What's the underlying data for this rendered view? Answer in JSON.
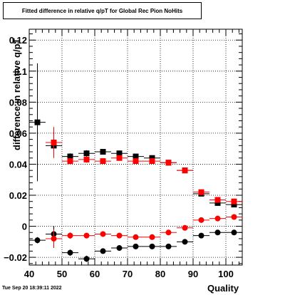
{
  "chart_data": {
    "type": "scatter",
    "title": "Fitted difference in relative q/pT for Global Rec Pion NoHits",
    "xlabel": "Quality",
    "ylabel": "difference in relative q/pT",
    "xlim": [
      40,
      105
    ],
    "ylim": [
      -0.025,
      0.127
    ],
    "grid": true,
    "x_ticks": [
      40,
      50,
      60,
      70,
      80,
      90,
      100
    ],
    "y_ticks": [
      -0.02,
      0,
      0.02,
      0.04,
      0.06,
      0.08,
      0.1,
      0.12
    ],
    "y_tick_labels": [
      "−0.02",
      "0",
      "0.02",
      "0.04",
      "0.06",
      "0.08",
      "0.1",
      "0.12"
    ],
    "x": [
      42.5,
      47.5,
      52.5,
      57.5,
      62.5,
      67.5,
      72.5,
      77.5,
      82.5,
      87.5,
      92.5,
      97.5,
      102.5
    ],
    "series": [
      {
        "color": "#000000",
        "marker": "square",
        "values": [
          0.067,
          0.052,
          0.045,
          0.047,
          0.048,
          0.047,
          0.045,
          0.044,
          0.041,
          0.036,
          0.021,
          0.015,
          0.014
        ],
        "yerr": [
          0.038,
          0.003,
          0.002,
          0.002,
          0.001,
          0.001,
          0.001,
          0.001,
          0.001,
          0.001,
          0.001,
          0.001,
          0.001
        ]
      },
      {
        "color": "#ff0000",
        "marker": "square",
        "values": [
          null,
          0.054,
          0.042,
          0.043,
          0.042,
          0.044,
          0.042,
          0.042,
          0.041,
          0.036,
          0.022,
          0.017,
          0.016
        ],
        "yerr": [
          null,
          0.01,
          0.002,
          0.002,
          0.001,
          0.001,
          0.001,
          0.001,
          0.001,
          0.001,
          0.001,
          0.001,
          0.001
        ]
      },
      {
        "color": "#000000",
        "marker": "circle",
        "values": [
          -0.009,
          -0.005,
          -0.017,
          -0.021,
          -0.016,
          -0.014,
          -0.013,
          -0.013,
          -0.013,
          -0.01,
          -0.006,
          -0.004,
          -0.004
        ],
        "yerr": [
          0.002,
          0.005,
          0.002,
          0.002,
          0.001,
          0.001,
          0.001,
          0.001,
          0.001,
          0.001,
          0.001,
          0.001,
          0.001
        ]
      },
      {
        "color": "#ff0000",
        "marker": "circle",
        "values": [
          null,
          -0.008,
          -0.006,
          -0.006,
          -0.005,
          -0.006,
          -0.007,
          -0.007,
          -0.004,
          -0.001,
          0.004,
          0.005,
          0.006
        ],
        "yerr": [
          null,
          0.006,
          0.002,
          0.001,
          0.001,
          0.001,
          0.001,
          0.001,
          0.001,
          0.001,
          0.001,
          0.001,
          0.001
        ]
      }
    ],
    "x_err_half_width": 2.5
  },
  "footer": {
    "timestamp": "Tue Sep 20 18:39:11 2022"
  }
}
